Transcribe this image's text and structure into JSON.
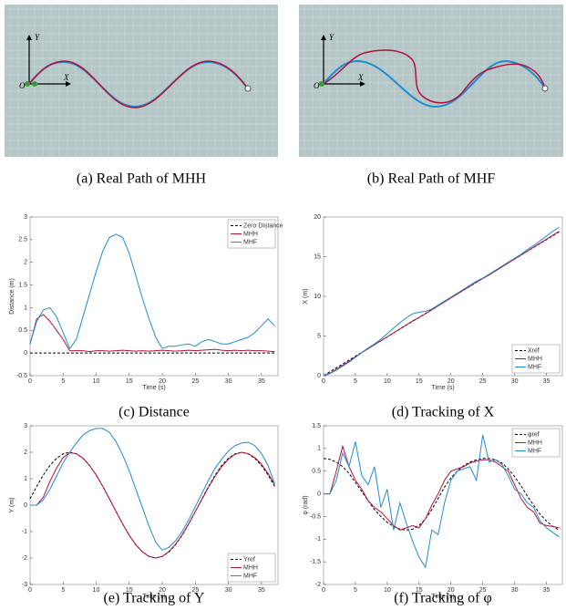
{
  "panels": [
    {
      "caption": "(a) Real Path of MHH",
      "y_label": "Y",
      "x_label": "X",
      "origin_label": "O"
    },
    {
      "caption": "(b) Real Path of MHF",
      "y_label": "Y",
      "x_label": "X",
      "origin_label": "O"
    }
  ],
  "chart_data": [
    {
      "type": "line",
      "caption": "(c) Distance",
      "x_label": "Time (s)",
      "y_label": "Distance (m)",
      "xlim": [
        0,
        37.5
      ],
      "xticks": [
        0,
        5,
        10,
        15,
        20,
        25,
        30,
        35
      ],
      "ylim": [
        -0.5,
        3
      ],
      "yticks": [
        -0.5,
        0,
        0.5,
        1,
        1.5,
        2,
        2.5,
        3
      ],
      "legend": "upper right",
      "x": [
        0,
        1,
        2,
        3,
        4,
        5,
        6,
        7,
        8,
        9,
        10,
        11,
        12,
        13,
        14,
        15,
        16,
        17,
        18,
        19,
        20,
        21,
        22,
        23,
        24,
        25,
        26,
        27,
        28,
        29,
        30,
        31,
        32,
        33,
        34,
        35,
        36,
        37
      ],
      "series": [
        {
          "name": "Zero Distance",
          "color": "#000000",
          "dashed": true,
          "values": [
            0,
            0,
            0,
            0,
            0,
            0,
            0,
            0,
            0,
            0,
            0,
            0,
            0,
            0,
            0,
            0,
            0,
            0,
            0,
            0,
            0,
            0,
            0,
            0,
            0,
            0,
            0,
            0,
            0,
            0,
            0,
            0,
            0,
            0,
            0,
            0,
            0,
            0
          ]
        },
        {
          "name": "MHH",
          "color": "#b5123a",
          "dashed": false,
          "values": [
            0.2,
            0.75,
            0.85,
            0.7,
            0.5,
            0.3,
            0.05,
            0.05,
            0.05,
            0.03,
            0.05,
            0.05,
            0.04,
            0.05,
            0.06,
            0.05,
            0.04,
            0.05,
            0.04,
            0.05,
            0.06,
            0.05,
            0.04,
            0.05,
            0.06,
            0.05,
            0.06,
            0.07,
            0.08,
            0.06,
            0.05,
            0.06,
            0.05,
            0.06,
            0.05,
            0.05,
            0.04,
            0.03
          ]
        },
        {
          "name": "MHF",
          "color": "#1f8cd0",
          "dashed": false,
          "values": [
            0.2,
            0.7,
            0.95,
            1.0,
            0.8,
            0.45,
            0.1,
            0.3,
            0.8,
            1.3,
            1.8,
            2.25,
            2.55,
            2.62,
            2.55,
            2.2,
            1.7,
            1.2,
            0.75,
            0.35,
            0.1,
            0.15,
            0.15,
            0.18,
            0.2,
            0.15,
            0.25,
            0.3,
            0.25,
            0.2,
            0.2,
            0.25,
            0.3,
            0.35,
            0.45,
            0.6,
            0.75,
            0.6
          ]
        }
      ]
    },
    {
      "type": "line",
      "caption": "(d) Tracking of X",
      "x_label": "Time (s)",
      "y_label": "X (m)",
      "xlim": [
        0,
        37.5
      ],
      "xticks": [
        0,
        5,
        10,
        15,
        20,
        25,
        30,
        35
      ],
      "ylim": [
        0,
        20
      ],
      "yticks": [
        0,
        5,
        10,
        15,
        20
      ],
      "legend": "lower right",
      "x": [
        0,
        1,
        2,
        3,
        4,
        5,
        6,
        7,
        8,
        9,
        10,
        11,
        12,
        13,
        14,
        15,
        16,
        17,
        18,
        19,
        20,
        21,
        22,
        23,
        24,
        25,
        26,
        27,
        28,
        29,
        30,
        31,
        32,
        33,
        34,
        35,
        36,
        37
      ],
      "series": [
        {
          "name": "Xref",
          "color": "#000000",
          "dashed": true,
          "values": [
            0,
            0.49,
            0.98,
            1.47,
            1.96,
            2.45,
            2.94,
            3.43,
            3.92,
            4.41,
            4.9,
            5.39,
            5.88,
            6.37,
            6.86,
            7.35,
            7.84,
            8.33,
            8.82,
            9.31,
            9.8,
            10.29,
            10.78,
            11.27,
            11.76,
            12.25,
            12.74,
            13.23,
            13.72,
            14.21,
            14.7,
            15.19,
            15.68,
            16.17,
            16.66,
            17.15,
            17.64,
            18.13
          ]
        },
        {
          "name": "MHH",
          "color": "#b5123a",
          "dashed": false,
          "values": [
            0,
            0.3,
            0.8,
            1.3,
            1.8,
            2.35,
            2.9,
            3.4,
            3.9,
            4.4,
            4.9,
            5.4,
            5.9,
            6.4,
            6.9,
            7.35,
            7.8,
            8.3,
            8.8,
            9.3,
            9.8,
            10.3,
            10.8,
            11.3,
            11.8,
            12.25,
            12.7,
            13.2,
            13.7,
            14.2,
            14.7,
            15.2,
            15.7,
            16.2,
            16.7,
            17.2,
            17.7,
            18.2
          ]
        },
        {
          "name": "MHF",
          "color": "#1f8cd0",
          "dashed": false,
          "values": [
            0,
            0.25,
            0.7,
            1.2,
            1.7,
            2.3,
            2.9,
            3.5,
            4.0,
            4.6,
            5.3,
            6.0,
            6.7,
            7.3,
            7.8,
            8.0,
            8.1,
            8.4,
            8.9,
            9.4,
            9.9,
            10.4,
            10.9,
            11.4,
            11.9,
            12.3,
            12.8,
            13.3,
            13.8,
            14.3,
            14.8,
            15.3,
            15.9,
            16.4,
            17.0,
            17.6,
            18.2,
            18.7
          ]
        }
      ]
    },
    {
      "type": "line",
      "caption": "(e) Tracking of Y",
      "x_label": "Time (s)",
      "y_label": "Y (m)",
      "xlim": [
        0,
        37.5
      ],
      "xticks": [
        0,
        5,
        10,
        15,
        20,
        25,
        30,
        35
      ],
      "ylim": [
        -3,
        3
      ],
      "yticks": [
        -3,
        -2,
        -1,
        0,
        1,
        2,
        3
      ],
      "legend": "lower right",
      "x": [
        0,
        1,
        2,
        3,
        4,
        5,
        6,
        7,
        8,
        9,
        10,
        11,
        12,
        13,
        14,
        15,
        16,
        17,
        18,
        19,
        20,
        21,
        22,
        23,
        24,
        25,
        26,
        27,
        28,
        29,
        30,
        31,
        32,
        33,
        34,
        35,
        36,
        37
      ],
      "series": [
        {
          "name": "Yref",
          "color": "#000000",
          "dashed": true,
          "values": [
            0.24,
            0.71,
            1.14,
            1.5,
            1.77,
            1.94,
            2,
            1.94,
            1.77,
            1.5,
            1.14,
            0.71,
            0.24,
            -0.24,
            -0.71,
            -1.14,
            -1.5,
            -1.77,
            -1.94,
            -2,
            -1.94,
            -1.77,
            -1.5,
            -1.14,
            -0.71,
            -0.24,
            0.24,
            0.71,
            1.14,
            1.5,
            1.77,
            1.94,
            2,
            1.94,
            1.77,
            1.5,
            1.14,
            0.71
          ]
        },
        {
          "name": "MHH",
          "color": "#b5123a",
          "dashed": false,
          "values": [
            0,
            0,
            0.3,
            0.9,
            1.4,
            1.8,
            1.98,
            1.95,
            1.78,
            1.5,
            1.14,
            0.71,
            0.24,
            -0.24,
            -0.71,
            -1.14,
            -1.5,
            -1.77,
            -1.94,
            -2,
            -1.94,
            -1.75,
            -1.48,
            -1.12,
            -0.7,
            -0.24,
            0.22,
            0.68,
            1.1,
            1.46,
            1.74,
            1.92,
            2.0,
            1.95,
            1.8,
            1.55,
            1.2,
            0.78
          ]
        },
        {
          "name": "MHF",
          "color": "#1f8cd0",
          "dashed": false,
          "values": [
            0,
            0,
            0.2,
            0.6,
            1.1,
            1.6,
            2.0,
            2.35,
            2.65,
            2.82,
            2.9,
            2.9,
            2.75,
            2.4,
            1.9,
            1.3,
            0.6,
            -0.1,
            -0.8,
            -1.4,
            -1.7,
            -1.6,
            -1.35,
            -1.0,
            -0.55,
            -0.05,
            0.45,
            0.95,
            1.4,
            1.75,
            2.05,
            2.25,
            2.35,
            2.38,
            2.25,
            1.95,
            1.5,
            0.8
          ]
        }
      ]
    },
    {
      "type": "line",
      "caption": "(f) Tracking of φ",
      "x_label": "Time (s)",
      "y_label": "φ (rad)",
      "xlim": [
        0,
        37.5
      ],
      "xticks": [
        0,
        5,
        10,
        15,
        20,
        25,
        30,
        35
      ],
      "ylim": [
        -2,
        1.5
      ],
      "yticks": [
        -2,
        -1.5,
        -1,
        -0.5,
        0,
        0.5,
        1,
        1.5
      ],
      "legend": "upper right",
      "x": [
        0,
        1,
        2,
        3,
        4,
        5,
        6,
        7,
        8,
        9,
        10,
        11,
        12,
        13,
        14,
        15,
        16,
        17,
        18,
        19,
        20,
        21,
        22,
        23,
        24,
        25,
        26,
        27,
        28,
        29,
        30,
        31,
        32,
        33,
        34,
        35,
        36,
        37
      ],
      "series": [
        {
          "name": "φref",
          "color": "#000000",
          "dashed": true,
          "values": [
            0.78,
            0.76,
            0.7,
            0.6,
            0.45,
            0.25,
            0.05,
            -0.15,
            -0.35,
            -0.5,
            -0.63,
            -0.72,
            -0.78,
            -0.8,
            -0.78,
            -0.7,
            -0.55,
            -0.35,
            -0.1,
            0.15,
            0.35,
            0.5,
            0.62,
            0.7,
            0.75,
            0.78,
            0.78,
            0.75,
            0.68,
            0.55,
            0.38,
            0.18,
            -0.05,
            -0.25,
            -0.45,
            -0.6,
            -0.72,
            -0.8
          ]
        },
        {
          "name": "MHH",
          "color": "#b5123a",
          "dashed": false,
          "values": [
            0,
            0,
            0.5,
            1.05,
            0.6,
            0.3,
            0.1,
            -0.15,
            -0.3,
            -0.4,
            -0.55,
            -0.7,
            -0.8,
            -0.75,
            -0.7,
            -0.75,
            -0.55,
            -0.25,
            0,
            0.3,
            0.5,
            0.55,
            0.6,
            0.68,
            0.72,
            0.75,
            0.75,
            0.7,
            0.6,
            0.5,
            0.2,
            -0.1,
            -0.3,
            -0.4,
            -0.65,
            -0.7,
            -0.72,
            -0.75
          ]
        },
        {
          "name": "MHF",
          "color": "#1f8cd0",
          "dashed": false,
          "values": [
            0,
            0,
            0.3,
            0.9,
            0.6,
            1.15,
            0.4,
            0.2,
            0.6,
            -0.3,
            0.1,
            -0.8,
            -0.2,
            -0.65,
            -1.05,
            -1.4,
            -1.62,
            -0.8,
            -0.9,
            -0.2,
            0.3,
            0.5,
            0.55,
            0.6,
            0.3,
            1.3,
            0.7,
            0.75,
            0.65,
            0.4,
            0.1,
            0,
            -0.2,
            -0.3,
            -0.6,
            -0.75,
            -0.85,
            -0.95
          ]
        }
      ]
    }
  ]
}
